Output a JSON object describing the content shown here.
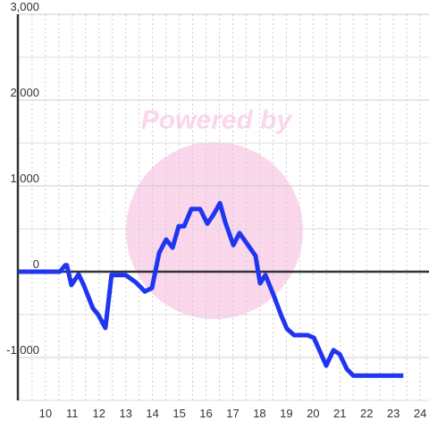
{
  "chart_data": {
    "type": "line",
    "watermark": "Powered by",
    "x": [
      9.0,
      10.54,
      10.74,
      10.8,
      10.97,
      11.24,
      11.44,
      11.77,
      11.97,
      12.24,
      12.47,
      13.0,
      13.38,
      13.71,
      13.98,
      14.25,
      14.51,
      14.75,
      14.98,
      15.18,
      15.45,
      15.78,
      16.05,
      16.28,
      16.52,
      16.72,
      17.02,
      17.25,
      17.85,
      18.02,
      18.22,
      18.52,
      18.82,
      19.02,
      19.29,
      19.79,
      20.03,
      20.49,
      20.76,
      20.99,
      21.26,
      21.5,
      23.37
    ],
    "series": [
      {
        "color": "#1f35f2",
        "values": [
          0,
          0,
          75,
          75,
          -155,
          -30,
          -165,
          -425,
          -500,
          -655,
          -40,
          -40,
          -125,
          -230,
          -190,
          220,
          375,
          280,
          530,
          530,
          730,
          730,
          560,
          665,
          800,
          575,
          310,
          450,
          185,
          -135,
          -40,
          -270,
          -520,
          -665,
          -740,
          -740,
          -770,
          -1095,
          -915,
          -960,
          -1135,
          -1210,
          -1210
        ]
      }
    ],
    "xlim": [
      8.97,
      24.33
    ],
    "ylim": [
      -1500,
      3000
    ],
    "xticks": [
      10,
      11,
      12,
      13,
      14,
      15,
      16,
      17,
      18,
      19,
      20,
      21,
      22,
      23,
      24
    ],
    "xminorticks": [
      9.5,
      10.5,
      11.5,
      12.5,
      13.5,
      14.5,
      15.5,
      16.5,
      17.5,
      18.5,
      19.5,
      20.5,
      21.5,
      22.5,
      23.5
    ],
    "yticks": [
      {
        "value": -1000,
        "label": "-1,000"
      },
      0,
      {
        "value": 1000,
        "label": "1,000"
      },
      {
        "value": 2000,
        "label": "2,000"
      },
      {
        "value": 3000,
        "label": "3,000"
      }
    ],
    "yminorticks": [
      -1500,
      -500,
      500,
      1500,
      2500
    ],
    "grid": true
  }
}
